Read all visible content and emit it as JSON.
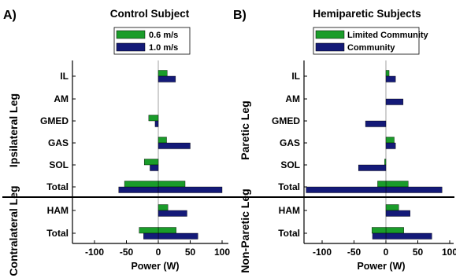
{
  "chart_data": [
    {
      "type": "bar",
      "orientation": "horizontal",
      "panel_label": "A)",
      "title": "Control Subject",
      "xlabel": "Power (W)",
      "xlim": [
        -130,
        100
      ],
      "xticks": [
        -100,
        -50,
        0,
        50,
        100
      ],
      "categories": [
        "IL",
        "AM",
        "GMED",
        "GAS",
        "SOL",
        "Total",
        "HAM",
        "Total"
      ],
      "groups": [
        {
          "label": "Ipsilateral Leg",
          "categories": [
            "IL",
            "AM",
            "GMED",
            "GAS",
            "SOL",
            "Total"
          ]
        },
        {
          "label": "Contralateral Leg",
          "categories": [
            "HAM",
            "Total"
          ]
        }
      ],
      "series": [
        {
          "name": "0.6 m/s",
          "color": "#1a9c2a",
          "values": [
            14,
            0,
            -15,
            13,
            -22,
            42,
            15,
            28
          ]
        },
        {
          "name": "1.0 m/s",
          "color": "#141a78",
          "values": [
            27,
            0,
            -5,
            50,
            -13,
            -62,
            45,
            62
          ]
        }
      ],
      "overlay_extents": [
        [
          null,
          null
        ],
        [
          null,
          null
        ],
        [
          null,
          null
        ],
        [
          null,
          null
        ],
        [
          null,
          null
        ],
        [
          -53,
          100
        ],
        [
          null,
          null
        ],
        [
          -30,
          -23
        ]
      ],
      "legend": "top"
    },
    {
      "type": "bar",
      "orientation": "horizontal",
      "panel_label": "B)",
      "title": "Hemiparetic Subjects",
      "xlabel": "Power (W)",
      "xlim": [
        -130,
        100
      ],
      "xticks": [
        -100,
        -50,
        0,
        50,
        100
      ],
      "categories": [
        "IL",
        "AM",
        "GMED",
        "GAS",
        "SOL",
        "Total",
        "HAM",
        "Total"
      ],
      "groups": [
        {
          "label": "Paretic Leg",
          "categories": [
            "IL",
            "AM",
            "GMED",
            "GAS",
            "SOL",
            "Total"
          ]
        },
        {
          "label": "Non-Paretic Leg",
          "categories": [
            "HAM",
            "Total"
          ]
        }
      ],
      "series": [
        {
          "name": "Limited Community",
          "color": "#1a9c2a",
          "values": [
            5,
            0,
            0,
            13,
            -2,
            35,
            20,
            28
          ]
        },
        {
          "name": "Community",
          "color": "#141a78",
          "values": [
            15,
            27,
            -32,
            15,
            -43,
            88,
            38,
            72
          ]
        }
      ],
      "overlay_extents": [
        [
          null,
          null
        ],
        [
          null,
          null
        ],
        [
          null,
          null
        ],
        [
          null,
          null
        ],
        [
          null,
          null
        ],
        [
          -13,
          -125
        ],
        [
          null,
          null
        ],
        [
          -22,
          -21
        ]
      ],
      "legend": "top"
    }
  ],
  "legend_boxes": [
    {
      "items": [
        "0.6 m/s",
        "1.0 m/s"
      ]
    },
    {
      "items": [
        "Limited Community",
        "Community"
      ]
    }
  ]
}
